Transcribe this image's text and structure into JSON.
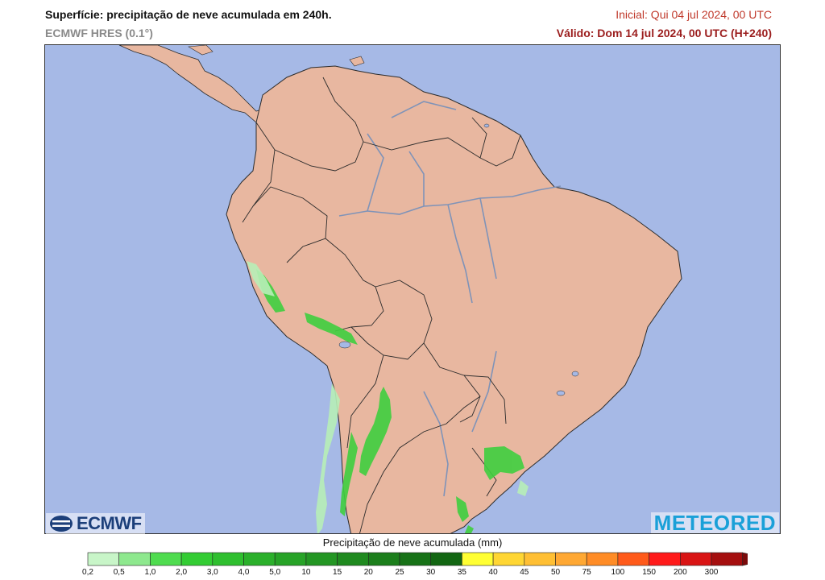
{
  "header": {
    "title": "Superfície: precipitação de neve acumulada em 240h.",
    "model": "ECMWF HRES (0.1°)",
    "initial": "Inicial: Qui 04 jul 2024, 00 UTC",
    "valid": "Válido: Dom 14 jul 2024, 00 UTC (H+240)"
  },
  "logos": {
    "ecmwf": "ECMWF",
    "meteored": "METEORED"
  },
  "legend": {
    "title": "Precipitação de neve acumulada (mm)",
    "levels": [
      "0,2",
      "0,5",
      "1,0",
      "2,0",
      "3,0",
      "4,0",
      "5,0",
      "10",
      "15",
      "20",
      "25",
      "30",
      "35",
      "40",
      "45",
      "50",
      "75",
      "100",
      "150",
      "200",
      "300"
    ],
    "colors": [
      "#c8f5c8",
      "#8ee88e",
      "#4fdc4f",
      "#33cc33",
      "#2fbf2f",
      "#2bb02b",
      "#27a327",
      "#239623",
      "#1f8a1f",
      "#1b7e1b",
      "#177217",
      "#126612",
      "#ffff33",
      "#ffd633",
      "#ffbf33",
      "#ffa833",
      "#ff8c26",
      "#ff5a1a",
      "#ff1a1a",
      "#d91414",
      "#a50f0f"
    ]
  },
  "map": {
    "colors": {
      "ocean": "#a6b9e6",
      "land": "#e8b7a0",
      "river": "#7f93b8",
      "border": "#2b2b2b",
      "snow": "#3fcf3f"
    }
  }
}
